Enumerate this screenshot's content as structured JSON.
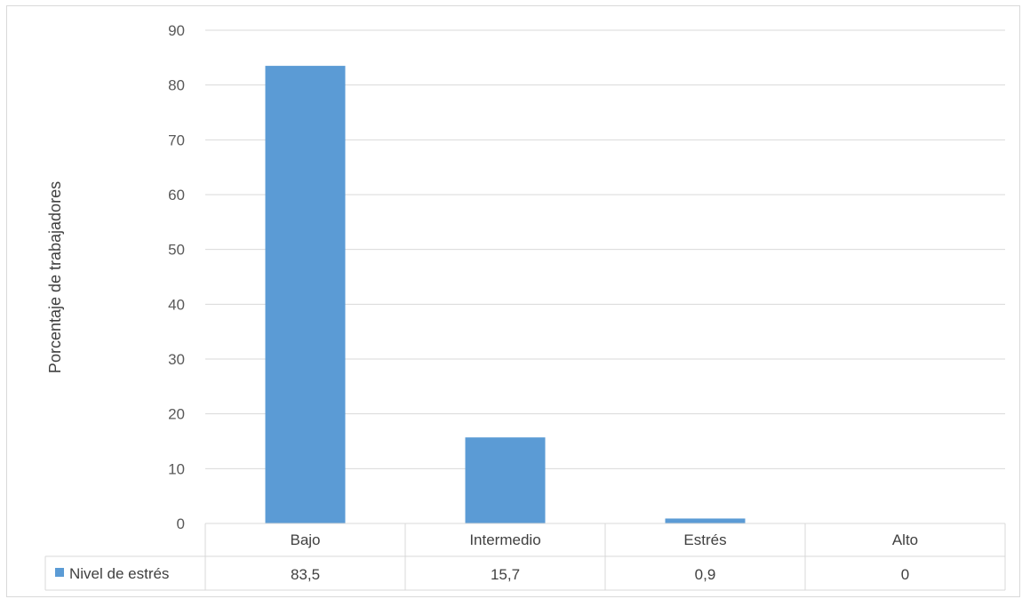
{
  "chart_data": {
    "type": "bar",
    "ylabel": "Porcentaje de trabajadores",
    "ylim": [
      0,
      90
    ],
    "ytick_step": 10,
    "grid": true,
    "categories": [
      "Bajo",
      "Intermedio",
      "Estrés",
      "Alto"
    ],
    "series": [
      {
        "name": "Nivel de estrés",
        "values": [
          83.5,
          15.7,
          0.9,
          0
        ],
        "value_labels": [
          "83,5",
          "15,7",
          "0,9",
          "0"
        ],
        "color": "#5b9bd5"
      }
    ],
    "legend": "data-table-left"
  }
}
